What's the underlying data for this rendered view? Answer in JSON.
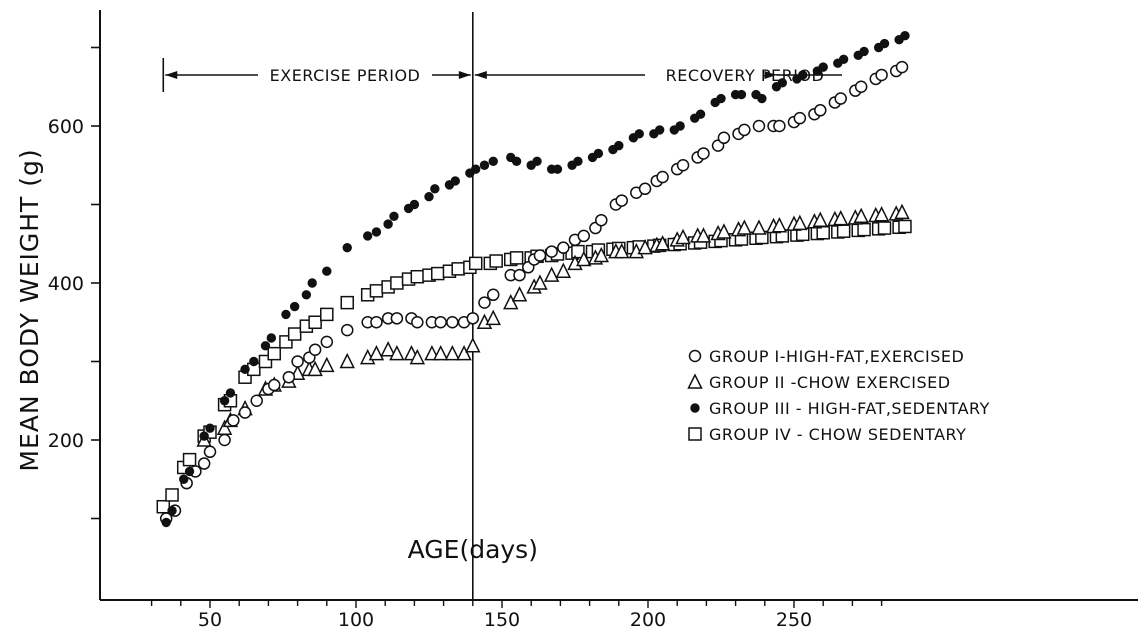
{
  "chart_data": {
    "type": "scatter",
    "title": "",
    "xlabel": "AGE(days)",
    "ylabel": "MEAN BODY WEIGHT (g)",
    "xlim": [
      22,
      290
    ],
    "ylim": [
      0,
      730
    ],
    "x_ticks": [
      50,
      100,
      150,
      200,
      250
    ],
    "y_ticks": [
      200,
      400,
      600
    ],
    "grid": false,
    "legend_position": "right-middle",
    "annotations": {
      "exercise_period": "EXERCISE PERIOD",
      "recovery_period": "RECOVERY PERIOD",
      "exercise_start_x": 34,
      "divider_x": 140,
      "recovery_end_x": 244
    },
    "series": [
      {
        "name": "GROUP I-HIGH-FAT,EXERCISED",
        "marker": "open-circle",
        "x": [
          35,
          38,
          42,
          45,
          48,
          50,
          55,
          58,
          62,
          66,
          70,
          72,
          77,
          80,
          84,
          86,
          90,
          97,
          104,
          107,
          111,
          114,
          119,
          121,
          126,
          129,
          133,
          137,
          140,
          144,
          147,
          153,
          156,
          159,
          161,
          163,
          167,
          171,
          175,
          178,
          182,
          184,
          189,
          191,
          196,
          199,
          203,
          205,
          210,
          212,
          217,
          219,
          224,
          226,
          231,
          233,
          238,
          243,
          245,
          250,
          252,
          257,
          259,
          264,
          266,
          271,
          273,
          278,
          280,
          285,
          287
        ],
        "y": [
          100,
          110,
          145,
          160,
          170,
          185,
          200,
          225,
          235,
          250,
          265,
          270,
          280,
          300,
          305,
          315,
          325,
          340,
          350,
          350,
          355,
          355,
          355,
          350,
          350,
          350,
          350,
          350,
          355,
          375,
          385,
          410,
          410,
          420,
          430,
          435,
          440,
          445,
          455,
          460,
          470,
          480,
          500,
          505,
          515,
          520,
          530,
          535,
          545,
          550,
          560,
          565,
          575,
          585,
          590,
          595,
          600,
          600,
          600,
          605,
          610,
          615,
          620,
          630,
          635,
          645,
          650,
          660,
          665,
          670,
          675
        ]
      },
      {
        "name": "GROUP II -CHOW EXERCISED",
        "marker": "open-triangle",
        "x": [
          48,
          55,
          57,
          62,
          69,
          72,
          77,
          80,
          84,
          86,
          90,
          97,
          104,
          107,
          111,
          114,
          119,
          121,
          126,
          129,
          133,
          137,
          140,
          144,
          147,
          153,
          156,
          161,
          163,
          167,
          171,
          175,
          178,
          182,
          184,
          189,
          191,
          196,
          199,
          203,
          205,
          210,
          212,
          217,
          219,
          224,
          226,
          231,
          233,
          238,
          243,
          245,
          250,
          252,
          257,
          259,
          264,
          266,
          271,
          273,
          278,
          280,
          285,
          287
        ],
        "y": [
          200,
          215,
          225,
          240,
          265,
          270,
          275,
          285,
          290,
          290,
          295,
          300,
          305,
          310,
          315,
          310,
          310,
          305,
          310,
          310,
          310,
          310,
          320,
          350,
          355,
          375,
          385,
          395,
          400,
          410,
          415,
          425,
          430,
          432,
          435,
          440,
          440,
          440,
          445,
          448,
          450,
          455,
          458,
          460,
          460,
          463,
          465,
          468,
          470,
          470,
          472,
          473,
          475,
          476,
          478,
          480,
          481,
          482,
          483,
          485,
          486,
          487,
          488,
          490
        ]
      },
      {
        "name": "GROUP III - HIGH-FAT,SEDENTARY",
        "marker": "filled-circle",
        "x": [
          35,
          37,
          41,
          43,
          48,
          50,
          55,
          57,
          62,
          65,
          69,
          71,
          76,
          79,
          83,
          85,
          90,
          97,
          104,
          107,
          111,
          113,
          118,
          120,
          125,
          127,
          132,
          134,
          139,
          141,
          144,
          147,
          153,
          155,
          160,
          162,
          167,
          169,
          174,
          176,
          181,
          183,
          188,
          190,
          195,
          197,
          202,
          204,
          209,
          211,
          216,
          218,
          223,
          225,
          230,
          232,
          237,
          239,
          244,
          246,
          251,
          253,
          258,
          260,
          265,
          267,
          272,
          274,
          279,
          281,
          286,
          288
        ],
        "y": [
          95,
          110,
          150,
          160,
          205,
          215,
          250,
          260,
          290,
          300,
          320,
          330,
          360,
          370,
          385,
          400,
          415,
          445,
          460,
          465,
          475,
          485,
          495,
          500,
          510,
          520,
          525,
          530,
          540,
          545,
          550,
          555,
          560,
          555,
          550,
          555,
          545,
          545,
          550,
          555,
          560,
          565,
          570,
          575,
          585,
          590,
          590,
          595,
          595,
          600,
          610,
          615,
          630,
          635,
          640,
          640,
          640,
          635,
          650,
          655,
          660,
          665,
          670,
          675,
          680,
          685,
          690,
          695,
          700,
          705,
          710,
          715
        ]
      },
      {
        "name": "GROUP IV - CHOW SEDENTARY",
        "marker": "open-square",
        "x": [
          34,
          37,
          41,
          43,
          48,
          50,
          55,
          57,
          62,
          65,
          69,
          72,
          76,
          79,
          83,
          86,
          90,
          97,
          104,
          107,
          111,
          114,
          118,
          121,
          125,
          128,
          132,
          135,
          139,
          141,
          146,
          148,
          153,
          155,
          160,
          162,
          167,
          169,
          174,
          176,
          181,
          183,
          188,
          190,
          195,
          197,
          202,
          204,
          209,
          211,
          216,
          218,
          223,
          225,
          230,
          232,
          237,
          239,
          244,
          246,
          251,
          253,
          258,
          260,
          265,
          267,
          272,
          274,
          279,
          281,
          286,
          288
        ],
        "y": [
          115,
          130,
          165,
          175,
          205,
          210,
          245,
          250,
          280,
          290,
          300,
          310,
          325,
          335,
          345,
          350,
          360,
          375,
          385,
          390,
          395,
          400,
          405,
          408,
          410,
          412,
          415,
          418,
          420,
          425,
          425,
          428,
          430,
          432,
          432,
          434,
          435,
          437,
          438,
          440,
          440,
          442,
          443,
          444,
          445,
          446,
          447,
          448,
          449,
          450,
          451,
          452,
          453,
          454,
          455,
          456,
          457,
          458,
          459,
          460,
          461,
          462,
          463,
          464,
          465,
          466,
          467,
          468,
          469,
          470,
          471,
          472
        ]
      }
    ]
  }
}
